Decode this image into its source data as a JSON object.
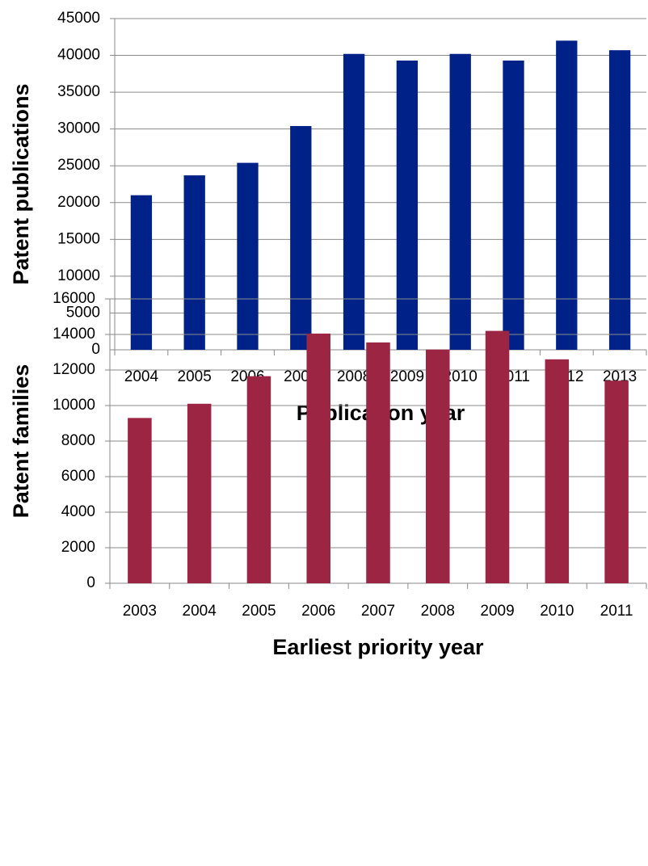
{
  "chart_data": [
    {
      "type": "bar",
      "x_label": "Publication year",
      "y_label": "Patent publications",
      "categories": [
        "2004",
        "2005",
        "2006",
        "2007",
        "2008",
        "2009",
        "2010",
        "2011",
        "2012",
        "2013"
      ],
      "values": [
        21000,
        23700,
        25400,
        30400,
        40200,
        39300,
        40200,
        39300,
        42000,
        40700
      ],
      "color": "#002288",
      "ylim": [
        0,
        45000
      ],
      "yticks": [
        0,
        5000,
        10000,
        15000,
        20000,
        25000,
        30000,
        35000,
        40000,
        45000
      ],
      "grid": true
    },
    {
      "type": "bar",
      "x_label": "Earliest priority year",
      "y_label": "Patent families",
      "categories": [
        "2003",
        "2004",
        "2005",
        "2006",
        "2007",
        "2008",
        "2009",
        "2010",
        "2011"
      ],
      "values": [
        9300,
        10100,
        11650,
        14050,
        13550,
        13150,
        14200,
        12600,
        11400
      ],
      "color": "#9b2543",
      "ylim": [
        0,
        16000
      ],
      "yticks": [
        0,
        2000,
        4000,
        6000,
        8000,
        10000,
        12000,
        14000,
        16000
      ],
      "grid": true
    }
  ]
}
